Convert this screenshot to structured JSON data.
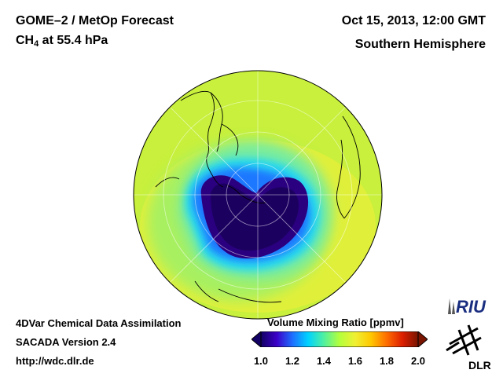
{
  "header": {
    "title_line1": "GOME–2 / MetOp Forecast",
    "species": "CH",
    "species_sub": "4",
    "level": " at 55.4 hPa",
    "date": "Oct 15, 2013, 12:00 GMT",
    "region": "Southern Hemisphere"
  },
  "footer": {
    "line1": "4DVar Chemical Data Assimilation",
    "line2": "SACADA Version 2.4",
    "line3": "http://wdc.dlr.de"
  },
  "colorbar": {
    "title": "Volume Mixing Ratio [ppmv]",
    "ticks": [
      "1.0",
      "1.2",
      "1.4",
      "1.6",
      "1.8",
      "2.0"
    ],
    "range": [
      1.0,
      2.0
    ],
    "colors": [
      "#120064",
      "#3c00c8",
      "#1e6eff",
      "#00d2ff",
      "#50f0a0",
      "#b4ff3c",
      "#f0f032",
      "#ffc800",
      "#ff6e00",
      "#dc1e00",
      "#781400"
    ]
  },
  "logos": {
    "riu": "RIU",
    "dlr": "DLR"
  }
}
